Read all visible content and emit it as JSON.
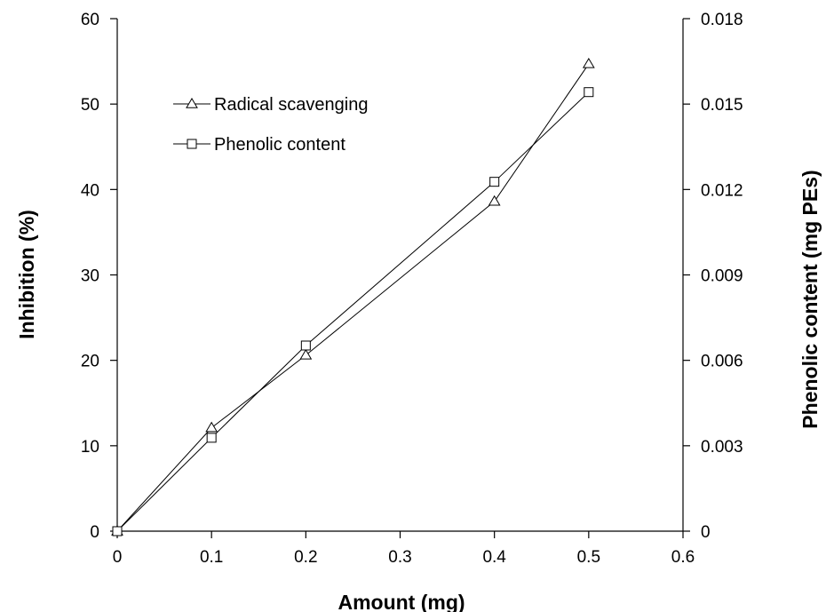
{
  "chart_data": {
    "type": "line",
    "xlabel": "Amount (mg)",
    "ylabel": "Inhibition (%)",
    "y2label": "Phenolic content (mg PEs)",
    "xlim": [
      0,
      0.6
    ],
    "ylim": [
      0,
      60
    ],
    "y2lim": [
      0,
      0.018
    ],
    "xticks": [
      "0",
      "0.1",
      "0.2",
      "0.3",
      "0.4",
      "0.5",
      "0.6"
    ],
    "yticks": [
      "0",
      "10",
      "20",
      "30",
      "40",
      "50",
      "60"
    ],
    "y2ticks": [
      "0",
      "0.003",
      "0.006",
      "0.009",
      "0.012",
      "0.015",
      "0.018"
    ],
    "grid": false,
    "legend_position": "upper-left",
    "series": [
      {
        "name": "Radical scavenging",
        "marker": "triangle",
        "axis": "left",
        "x": [
          0,
          0.1,
          0.2,
          0.4,
          0.5
        ],
        "y": [
          0,
          12.1,
          20.6,
          38.6,
          54.7
        ]
      },
      {
        "name": "Phenolic content",
        "marker": "square",
        "axis": "right",
        "x": [
          0,
          0.1,
          0.2,
          0.4,
          0.5
        ],
        "y": [
          0,
          0.00328,
          0.00652,
          0.01227,
          0.01542
        ]
      }
    ]
  }
}
